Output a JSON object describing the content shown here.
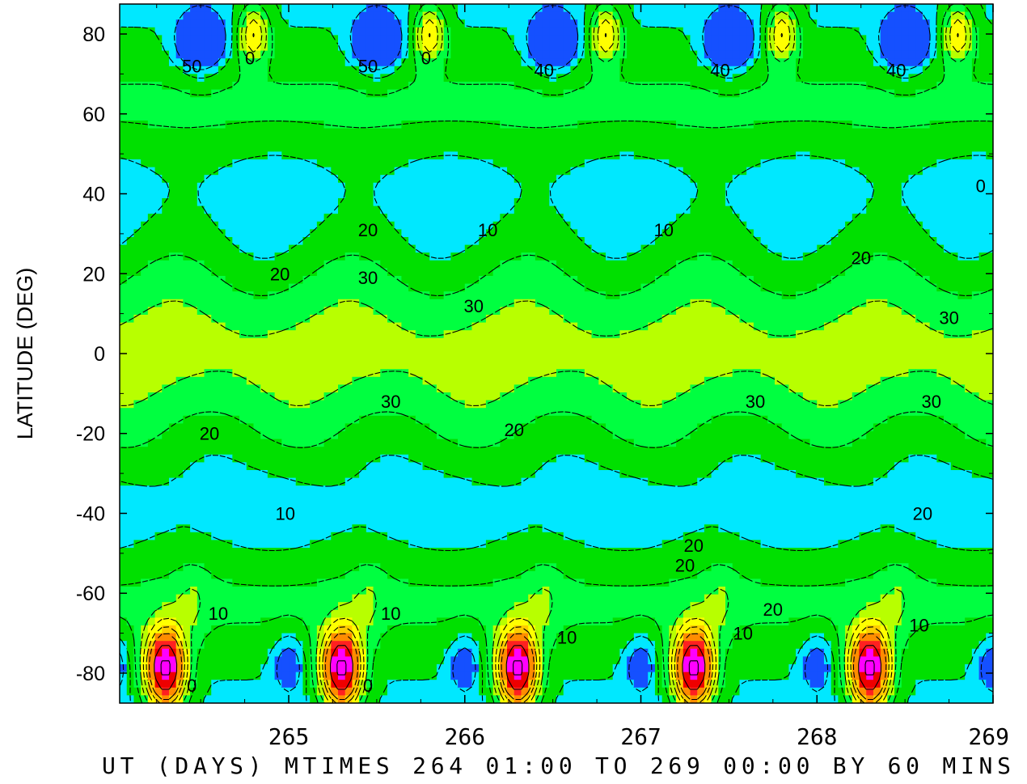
{
  "chart_data": {
    "type": "heatmap",
    "title": "",
    "ylabel": "LATITUDE (DEG)",
    "xlabel": "UT (DAYS) MTIMES 264 01:00 TO 269 00:00 BY   60 MINS",
    "xlim": [
      264.04,
      269.0
    ],
    "ylim": [
      -87.5,
      87.5
    ],
    "x_ticks": [
      265,
      266,
      267,
      268,
      269
    ],
    "y_ticks": [
      80,
      60,
      40,
      20,
      0,
      -20,
      -40,
      -60,
      -80
    ],
    "field": {
      "period_days": 1.0,
      "phase_day": 264.0,
      "equator_value": 33,
      "midlat_value": 8,
      "polar_trough_min": 30,
      "polar_peak_max": 150
    },
    "fill_levels": [
      0,
      10,
      20,
      30,
      40,
      50,
      60,
      70,
      80,
      90,
      100,
      110,
      120,
      130,
      140
    ],
    "fill_colors": [
      "#1550ff",
      "#00e8ff",
      "#00e000",
      "#00ff40",
      "#b8ff00",
      "#ffff00",
      "#ffcc00",
      "#ff8c00",
      "#ff2020",
      "#ee0000",
      "#ff00ff",
      "#ff00ff",
      "#ff00ff",
      "#ff00ff",
      "#ff00ff"
    ],
    "contour_labels": [
      {
        "text": "50",
        "x": 264.45,
        "y": 72
      },
      {
        "text": "0",
        "x": 264.78,
        "y": 74
      },
      {
        "text": "50",
        "x": 265.45,
        "y": 72
      },
      {
        "text": "0",
        "x": 265.78,
        "y": 74
      },
      {
        "text": "40",
        "x": 266.45,
        "y": 71
      },
      {
        "text": "40",
        "x": 267.45,
        "y": 71
      },
      {
        "text": "40",
        "x": 268.45,
        "y": 71
      },
      {
        "text": "20",
        "x": 265.45,
        "y": 31
      },
      {
        "text": "10",
        "x": 266.13,
        "y": 31
      },
      {
        "text": "10",
        "x": 267.13,
        "y": 31
      },
      {
        "text": "0",
        "x": 268.93,
        "y": 42
      },
      {
        "text": "20",
        "x": 264.95,
        "y": 20
      },
      {
        "text": "30",
        "x": 265.45,
        "y": 19
      },
      {
        "text": "20",
        "x": 268.25,
        "y": 24
      },
      {
        "text": "30",
        "x": 266.05,
        "y": 12
      },
      {
        "text": "30",
        "x": 268.75,
        "y": 9
      },
      {
        "text": "30",
        "x": 265.58,
        "y": -12
      },
      {
        "text": "30",
        "x": 267.65,
        "y": -12
      },
      {
        "text": "30",
        "x": 268.65,
        "y": -12
      },
      {
        "text": "20",
        "x": 264.55,
        "y": -20
      },
      {
        "text": "20",
        "x": 266.28,
        "y": -19
      },
      {
        "text": "10",
        "x": 264.98,
        "y": -40
      },
      {
        "text": "20",
        "x": 268.6,
        "y": -40
      },
      {
        "text": "20",
        "x": 267.3,
        "y": -48
      },
      {
        "text": "20",
        "x": 267.25,
        "y": -53
      },
      {
        "text": "20",
        "x": 267.75,
        "y": -64
      },
      {
        "text": "10",
        "x": 264.6,
        "y": -65
      },
      {
        "text": "10",
        "x": 265.58,
        "y": -65
      },
      {
        "text": "10",
        "x": 266.58,
        "y": -71
      },
      {
        "text": "10",
        "x": 267.58,
        "y": -70
      },
      {
        "text": "10",
        "x": 268.58,
        "y": -68
      },
      {
        "text": "0",
        "x": 264.45,
        "y": -83
      },
      {
        "text": "0",
        "x": 265.45,
        "y": -83
      }
    ]
  }
}
